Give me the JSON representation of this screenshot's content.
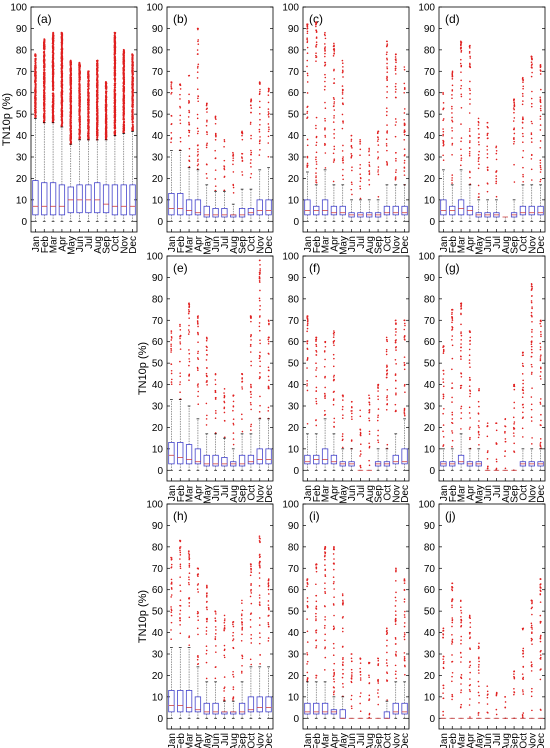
{
  "chart_data": [
    {
      "type": "box",
      "panel_label": "(a)",
      "ylabel": "TN10p (%)",
      "ylim": [
        -5,
        100
      ],
      "yticks": [
        0,
        10,
        20,
        30,
        40,
        50,
        60,
        70,
        80,
        90,
        100
      ],
      "categories": [
        "Jan",
        "Feb",
        "Mar",
        "Apr",
        "May",
        "Jun",
        "Jul",
        "Aug",
        "Sep",
        "Oct",
        "Nov",
        "Dec"
      ],
      "q1": [
        3,
        3,
        3,
        3,
        4,
        4,
        4,
        4,
        4,
        3,
        3,
        3
      ],
      "median": [
        7,
        7,
        7,
        7,
        10,
        10,
        10,
        10,
        8,
        7,
        7,
        7
      ],
      "q3": [
        19,
        18,
        18,
        17,
        16,
        17,
        17,
        18,
        17,
        17,
        17,
        17
      ],
      "whisker_low": [
        0,
        0,
        0,
        0,
        0,
        0,
        0,
        0,
        0,
        0,
        0,
        0
      ],
      "whisker_high": [
        48,
        46,
        46,
        44,
        36,
        38,
        38,
        38,
        38,
        40,
        41,
        42
      ],
      "outlier_max": [
        78,
        85,
        88,
        88,
        75,
        74,
        70,
        75,
        65,
        88,
        80,
        78
      ],
      "grid": false,
      "colors": {
        "box": "#4444cc",
        "outlier": "#e02020",
        "whisker": "#000000"
      }
    },
    {
      "type": "box",
      "panel_label": "(b)",
      "ylabel": "",
      "ylim": [
        -5,
        100
      ],
      "yticks": [
        0,
        10,
        20,
        30,
        40,
        50,
        60,
        70,
        80,
        90,
        100
      ],
      "categories": [
        "Jan",
        "Feb",
        "Mar",
        "Apr",
        "May",
        "Jun",
        "Jul",
        "Aug",
        "Sep",
        "Oct",
        "Nov",
        "Dec"
      ],
      "q1": [
        3,
        3,
        3,
        3,
        2,
        2,
        2,
        2,
        2,
        3,
        3,
        3
      ],
      "median": [
        6,
        6,
        5,
        4,
        3,
        3,
        3,
        3,
        3,
        4,
        5,
        5
      ],
      "q3": [
        13,
        13,
        10,
        10,
        7,
        6,
        6,
        3,
        6,
        6,
        10,
        10
      ],
      "whisker_low": [
        0,
        0,
        0,
        0,
        0,
        0,
        0,
        0,
        0,
        0,
        0,
        0
      ],
      "whisker_high": [
        33,
        33,
        25,
        24,
        17,
        14,
        14,
        8,
        15,
        15,
        24,
        25
      ],
      "outlier_max": [
        65,
        64,
        68,
        90,
        55,
        49,
        38,
        32,
        42,
        57,
        65,
        62
      ],
      "grid": false,
      "colors": {
        "box": "#4444cc",
        "outlier": "#e02020",
        "whisker": "#000000"
      }
    },
    {
      "type": "box",
      "panel_label": "(c)",
      "ylabel": "",
      "ylim": [
        -5,
        100
      ],
      "yticks": [
        0,
        10,
        20,
        30,
        40,
        50,
        60,
        70,
        80,
        90,
        100
      ],
      "categories": [
        "Jan",
        "Feb",
        "Mar",
        "Apr",
        "May",
        "Jun",
        "Jul",
        "Aug",
        "Sep",
        "Oct",
        "Nov",
        "Dec"
      ],
      "q1": [
        3,
        3,
        3,
        3,
        3,
        2,
        2,
        2,
        2,
        3,
        3,
        3
      ],
      "median": [
        5,
        5,
        5,
        4,
        4,
        3,
        3,
        3,
        3,
        4,
        4,
        4
      ],
      "q3": [
        10,
        7,
        10,
        7,
        7,
        4,
        4,
        4,
        4,
        7,
        7,
        7
      ],
      "whisker_low": [
        0,
        0,
        0,
        0,
        0,
        0,
        0,
        0,
        0,
        0,
        0,
        0
      ],
      "whisker_high": [
        23,
        17,
        24,
        17,
        17,
        10,
        10,
        10,
        10,
        17,
        17,
        17
      ],
      "outlier_max": [
        92,
        93,
        88,
        83,
        75,
        40,
        38,
        34,
        42,
        84,
        78,
        72
      ],
      "grid": false,
      "colors": {
        "box": "#4444cc",
        "outlier": "#e02020",
        "whisker": "#000000"
      }
    },
    {
      "type": "box",
      "panel_label": "(d)",
      "ylabel": "",
      "ylim": [
        -5,
        100
      ],
      "yticks": [
        0,
        10,
        20,
        30,
        40,
        50,
        60,
        70,
        80,
        90,
        100
      ],
      "categories": [
        "Jan",
        "Feb",
        "Mar",
        "Apr",
        "May",
        "Jun",
        "Jul",
        "Aug",
        "Sep",
        "Oct",
        "Nov",
        "Dec"
      ],
      "q1": [
        3,
        3,
        3,
        3,
        2,
        2,
        2,
        2,
        2,
        3,
        3,
        3
      ],
      "median": [
        5,
        5,
        6,
        5,
        3,
        3,
        3,
        2,
        3,
        4,
        4,
        4
      ],
      "q3": [
        10,
        7,
        10,
        7,
        4,
        4,
        4,
        2,
        4,
        7,
        7,
        7
      ],
      "whisker_low": [
        0,
        0,
        0,
        0,
        0,
        0,
        0,
        0,
        0,
        0,
        0,
        0
      ],
      "whisker_high": [
        24,
        17,
        24,
        17,
        10,
        10,
        10,
        2,
        10,
        17,
        17,
        17
      ],
      "outlier_max": [
        60,
        70,
        84,
        82,
        48,
        46,
        35,
        0,
        57,
        67,
        77,
        73
      ],
      "grid": false,
      "colors": {
        "box": "#4444cc",
        "outlier": "#e02020",
        "whisker": "#000000"
      }
    },
    {
      "type": "box",
      "panel_label": "(e)",
      "ylabel": "TN10p (%)",
      "ylim": [
        -5,
        100
      ],
      "yticks": [
        0,
        10,
        20,
        30,
        40,
        50,
        60,
        70,
        80,
        90,
        100
      ],
      "categories": [
        "Jan",
        "Feb",
        "Mar",
        "Apr",
        "May",
        "Jun",
        "Jul",
        "Aug",
        "Sep",
        "Oct",
        "Nov",
        "Dec"
      ],
      "q1": [
        3,
        3,
        3,
        3,
        2,
        2,
        2,
        2,
        2,
        3,
        3,
        3
      ],
      "median": [
        7,
        6,
        5,
        4,
        3,
        3,
        3,
        3,
        3,
        4,
        5,
        5
      ],
      "q3": [
        13,
        13,
        12,
        10,
        7,
        7,
        6,
        4,
        7,
        7,
        10,
        10
      ],
      "whisker_low": [
        0,
        0,
        0,
        0,
        0,
        0,
        0,
        0,
        0,
        0,
        0,
        0
      ],
      "whisker_high": [
        33,
        33,
        30,
        24,
        17,
        17,
        15,
        10,
        17,
        17,
        24,
        24
      ],
      "outlier_max": [
        65,
        68,
        78,
        72,
        62,
        45,
        38,
        35,
        45,
        72,
        98,
        70
      ],
      "grid": false,
      "colors": {
        "box": "#4444cc",
        "outlier": "#e02020",
        "whisker": "#000000"
      }
    },
    {
      "type": "box",
      "panel_label": "(f)",
      "ylabel": "",
      "ylim": [
        -5,
        100
      ],
      "yticks": [
        0,
        10,
        20,
        30,
        40,
        50,
        60,
        70,
        80,
        90,
        100
      ],
      "categories": [
        "Jan",
        "Feb",
        "Mar",
        "Apr",
        "May",
        "Jun",
        "Jul",
        "Aug",
        "Sep",
        "Oct",
        "Nov",
        "Dec"
      ],
      "q1": [
        3,
        3,
        3,
        3,
        2,
        2,
        0,
        0,
        2,
        2,
        3,
        3
      ],
      "median": [
        4,
        5,
        5,
        4,
        3,
        3,
        0,
        0,
        3,
        3,
        4,
        4
      ],
      "q3": [
        7,
        7,
        10,
        7,
        4,
        4,
        0,
        0,
        4,
        4,
        7,
        10
      ],
      "whisker_low": [
        0,
        0,
        0,
        0,
        0,
        0,
        0,
        0,
        0,
        0,
        0,
        0
      ],
      "whisker_high": [
        17,
        17,
        24,
        17,
        10,
        10,
        0,
        0,
        10,
        10,
        17,
        24
      ],
      "outlier_max": [
        72,
        62,
        60,
        65,
        35,
        32,
        28,
        35,
        40,
        62,
        70,
        70
      ],
      "grid": false,
      "colors": {
        "box": "#4444cc",
        "outlier": "#e02020",
        "whisker": "#000000"
      }
    },
    {
      "type": "box",
      "panel_label": "(g)",
      "ylabel": "",
      "ylim": [
        -5,
        100
      ],
      "yticks": [
        0,
        10,
        20,
        30,
        40,
        50,
        60,
        70,
        80,
        90,
        100
      ],
      "categories": [
        "Jan",
        "Feb",
        "Mar",
        "Apr",
        "May",
        "Jun",
        "Jul",
        "Aug",
        "Sep",
        "Oct",
        "Nov",
        "Dec"
      ],
      "q1": [
        2,
        2,
        3,
        2,
        2,
        0,
        0,
        0,
        0,
        2,
        2,
        2
      ],
      "median": [
        3,
        3,
        4,
        3,
        3,
        0,
        0,
        0,
        0,
        3,
        3,
        3
      ],
      "q3": [
        4,
        4,
        7,
        4,
        4,
        0,
        0,
        0,
        0,
        4,
        4,
        4
      ],
      "whisker_low": [
        0,
        0,
        0,
        0,
        0,
        0,
        0,
        0,
        0,
        0,
        0,
        0
      ],
      "whisker_high": [
        10,
        10,
        17,
        10,
        10,
        0,
        0,
        0,
        0,
        10,
        10,
        10
      ],
      "outlier_max": [
        58,
        75,
        78,
        65,
        38,
        22,
        22,
        24,
        40,
        55,
        87,
        70
      ],
      "grid": false,
      "colors": {
        "box": "#4444cc",
        "outlier": "#e02020",
        "whisker": "#000000"
      }
    },
    {
      "type": "box",
      "panel_label": "(h)",
      "ylabel": "TN10p (%)",
      "ylim": [
        -5,
        100
      ],
      "yticks": [
        0,
        10,
        20,
        30,
        40,
        50,
        60,
        70,
        80,
        90,
        100
      ],
      "categories": [
        "Jan",
        "Feb",
        "Mar",
        "Apr",
        "May",
        "Jun",
        "Jul",
        "Aug",
        "Sep",
        "Oct",
        "Nov",
        "Dec"
      ],
      "q1": [
        3,
        3,
        3,
        3,
        2,
        2,
        2,
        2,
        2,
        3,
        3,
        3
      ],
      "median": [
        6,
        6,
        5,
        4,
        3,
        3,
        3,
        3,
        3,
        4,
        5,
        5
      ],
      "q3": [
        13,
        13,
        13,
        10,
        7,
        7,
        3,
        3,
        7,
        10,
        10,
        10
      ],
      "whisker_low": [
        0,
        0,
        0,
        0,
        0,
        0,
        0,
        0,
        0,
        0,
        0,
        0
      ],
      "whisker_high": [
        33,
        33,
        33,
        24,
        17,
        17,
        8,
        8,
        17,
        24,
        24,
        24
      ],
      "outlier_max": [
        75,
        83,
        78,
        70,
        62,
        50,
        48,
        45,
        55,
        72,
        85,
        65
      ],
      "grid": false,
      "colors": {
        "box": "#4444cc",
        "outlier": "#e02020",
        "whisker": "#000000"
      }
    },
    {
      "type": "box",
      "panel_label": "(i)",
      "ylabel": "",
      "ylim": [
        -5,
        100
      ],
      "yticks": [
        0,
        10,
        20,
        30,
        40,
        50,
        60,
        70,
        80,
        90,
        100
      ],
      "categories": [
        "Jan",
        "Feb",
        "Mar",
        "Apr",
        "May",
        "Jun",
        "Jul",
        "Aug",
        "Sep",
        "Oct",
        "Nov",
        "Dec"
      ],
      "q1": [
        2,
        2,
        2,
        2,
        0,
        0,
        0,
        0,
        0,
        0,
        2,
        2
      ],
      "median": [
        3,
        3,
        3,
        3,
        0,
        0,
        0,
        0,
        0,
        0,
        3,
        3
      ],
      "q3": [
        7,
        7,
        7,
        4,
        4,
        0,
        0,
        0,
        0,
        3,
        7,
        7
      ],
      "whisker_low": [
        0,
        0,
        0,
        0,
        0,
        0,
        0,
        0,
        0,
        0,
        0,
        0
      ],
      "whisker_high": [
        17,
        17,
        17,
        10,
        10,
        0,
        0,
        0,
        0,
        8,
        17,
        17
      ],
      "outlier_max": [
        65,
        72,
        80,
        80,
        58,
        30,
        28,
        26,
        28,
        42,
        70,
        65
      ],
      "grid": false,
      "colors": {
        "box": "#4444cc",
        "outlier": "#e02020",
        "whisker": "#000000"
      }
    },
    {
      "type": "box",
      "panel_label": "(j)",
      "ylabel": "",
      "ylim": [
        -5,
        100
      ],
      "yticks": [
        0,
        10,
        20,
        30,
        40,
        50,
        60,
        70,
        80,
        90,
        100
      ],
      "categories": [
        "Jan",
        "Feb",
        "Mar",
        "Apr",
        "May",
        "Jun",
        "Jul",
        "Aug",
        "Sep",
        "Oct",
        "Nov",
        "Dec"
      ],
      "q1": [
        0,
        0,
        0,
        0,
        0,
        0,
        0,
        0,
        0,
        0,
        0,
        0
      ],
      "median": [
        0,
        0,
        0,
        0,
        0,
        0,
        0,
        0,
        0,
        0,
        0,
        0
      ],
      "q3": [
        0,
        0,
        0,
        0,
        0,
        0,
        0,
        0,
        0,
        0,
        0,
        0
      ],
      "whisker_low": [
        0,
        0,
        0,
        0,
        0,
        0,
        0,
        0,
        0,
        0,
        0,
        0
      ],
      "whisker_high": [
        0,
        0,
        0,
        0,
        0,
        0,
        0,
        0,
        0,
        0,
        0,
        0
      ],
      "outlier_max": [
        42,
        63,
        55,
        48,
        35,
        15,
        12,
        10,
        22,
        42,
        55,
        65
      ],
      "grid": false,
      "colors": {
        "box": "#4444cc",
        "outlier": "#e02020",
        "whisker": "#000000"
      }
    }
  ]
}
